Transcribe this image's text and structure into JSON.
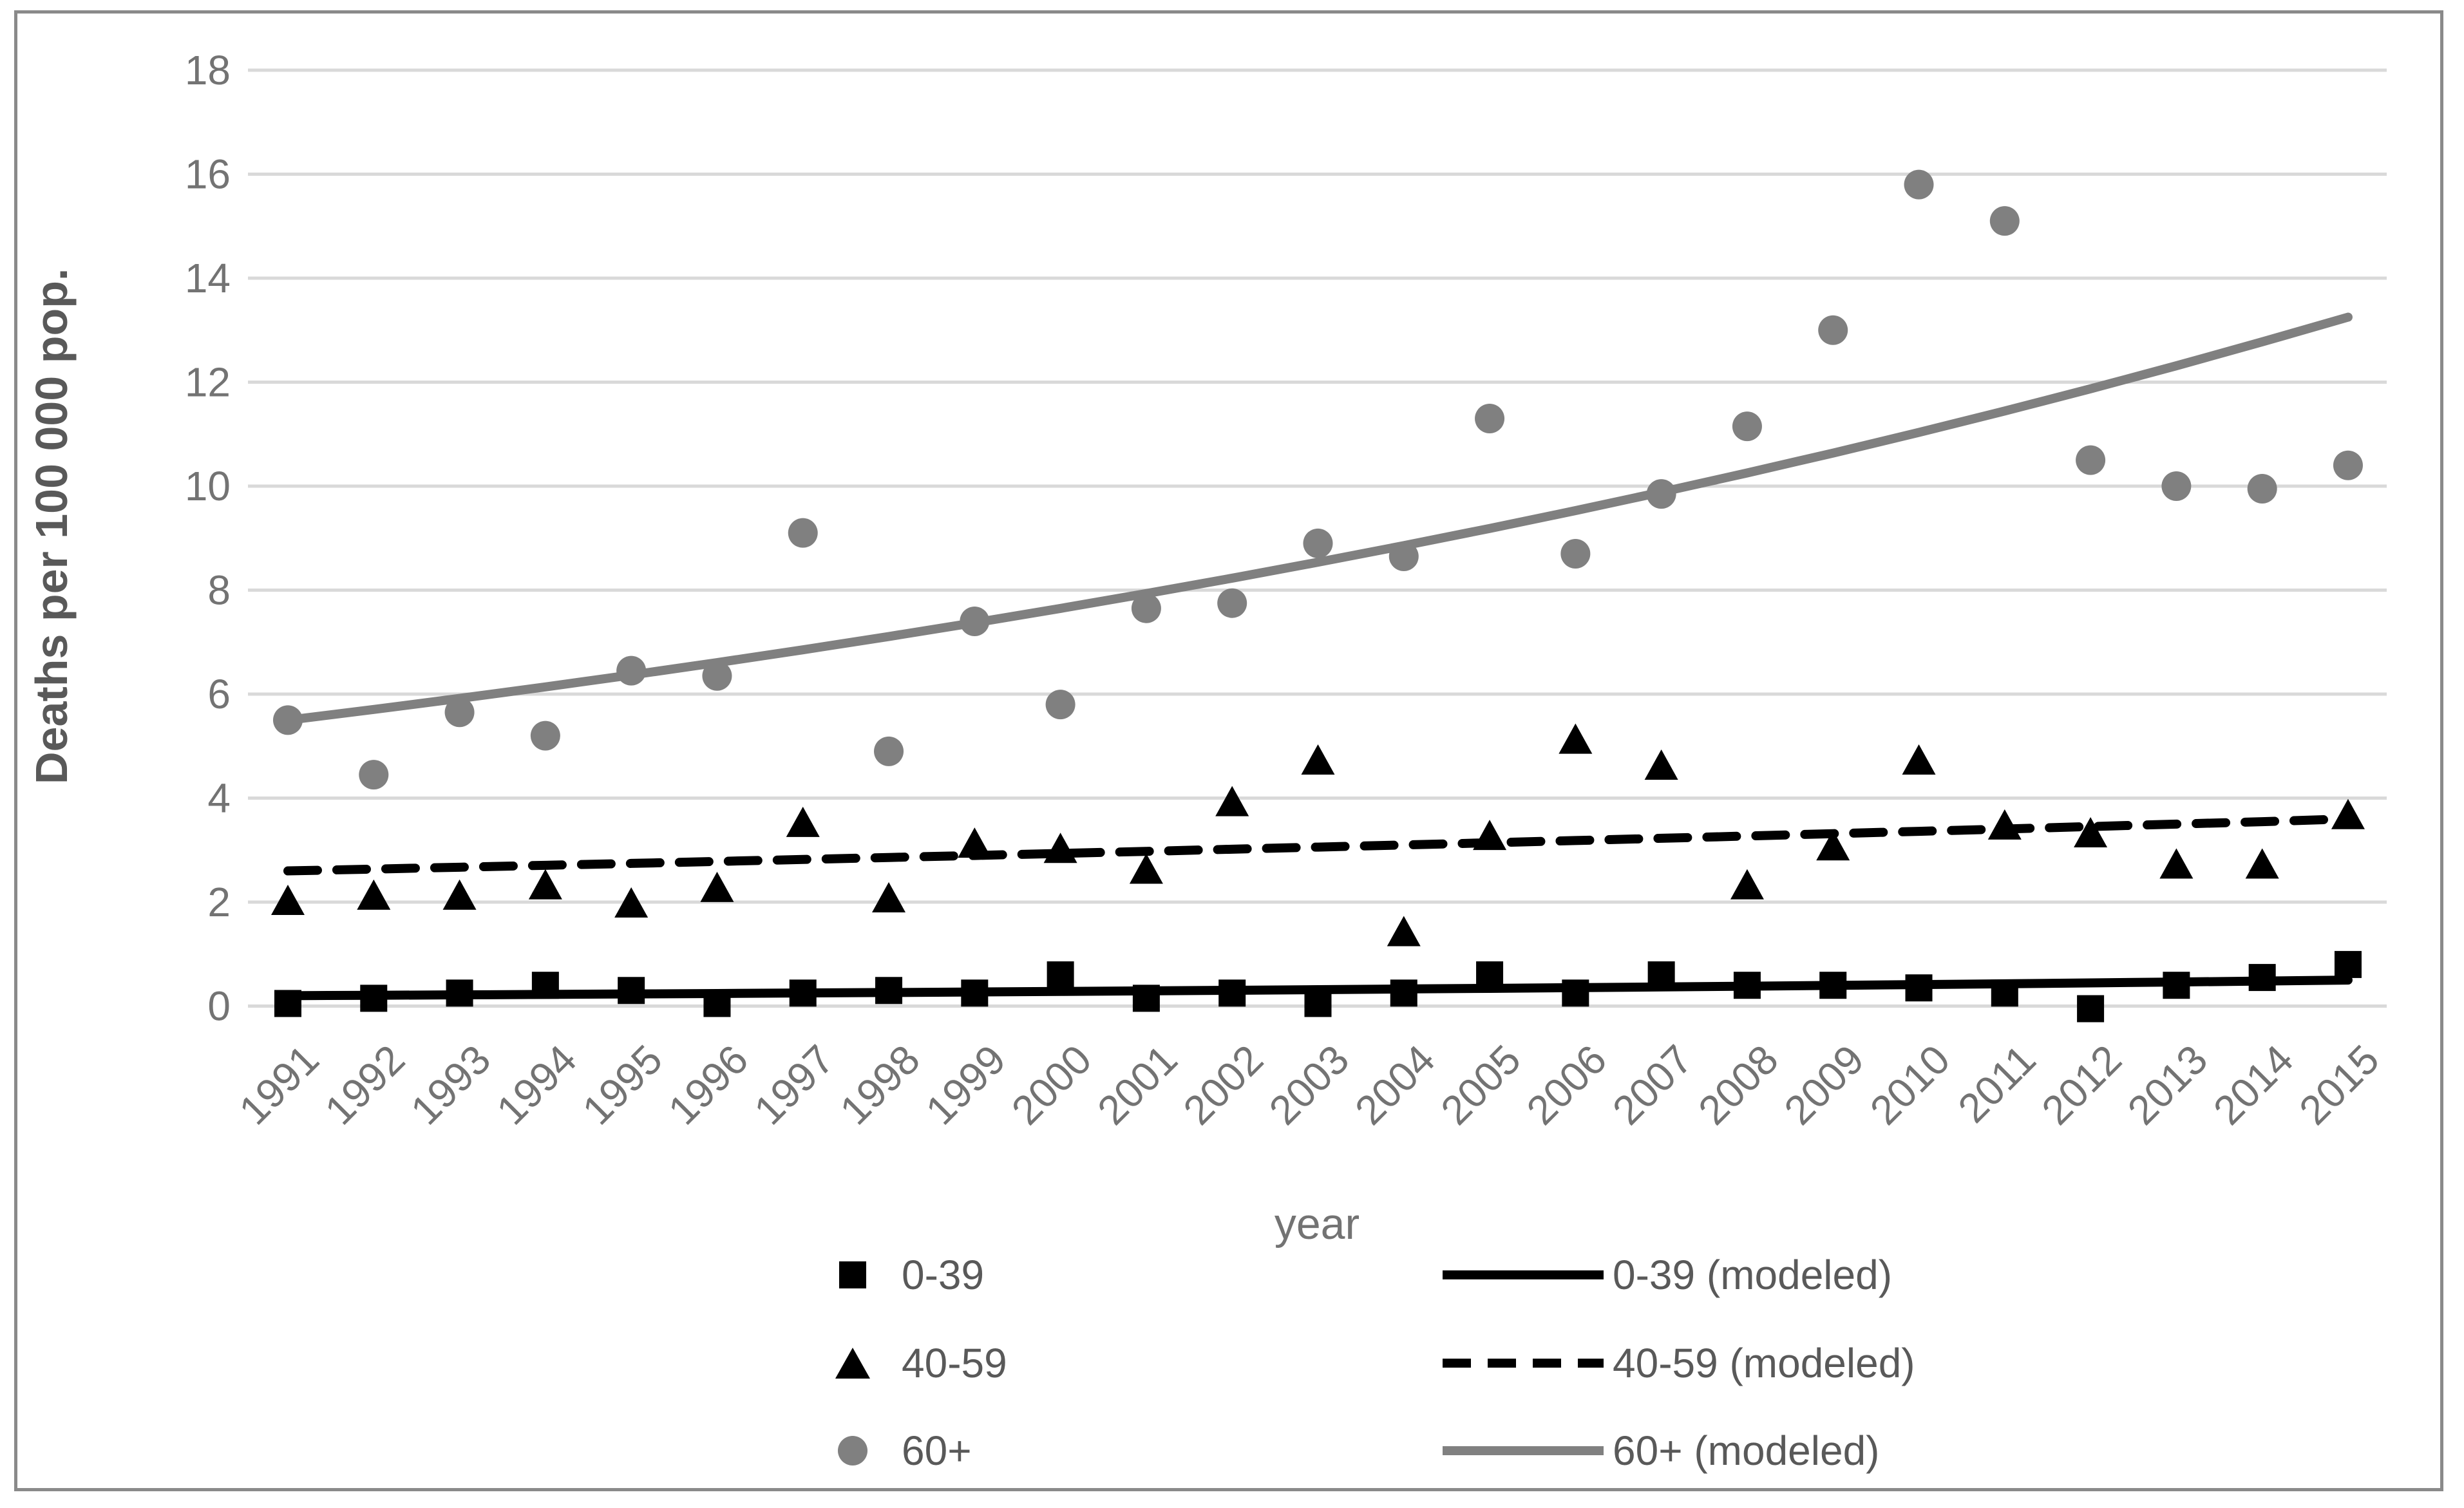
{
  "styles": {
    "grid_color": "#d9d9d9",
    "tick_color": "#737373",
    "axis_title_color": "#595959",
    "legend_text_color": "#595959",
    "black_series_color": "#000000",
    "gray_series_color": "#808080",
    "frame_color": "#8a8a8a"
  },
  "chart_data": {
    "type": "scatter",
    "title": "",
    "xlabel": "year",
    "ylabel": "Deaths per 100 000 pop.",
    "x_categories": [
      1991,
      1992,
      1993,
      1994,
      1995,
      1996,
      1997,
      1998,
      1999,
      2000,
      2001,
      2002,
      2003,
      2004,
      2005,
      2006,
      2007,
      2008,
      2009,
      2010,
      2011,
      2012,
      2013,
      2014,
      2015
    ],
    "ylim": [
      0,
      18
    ],
    "ytick_step": 2,
    "grid": "horizontal",
    "legend_position": "bottom",
    "series": [
      {
        "name": "0-39",
        "kind": "scatter",
        "marker": "square",
        "color": "#000000",
        "values": [
          0.05,
          0.15,
          0.25,
          0.4,
          0.3,
          0.05,
          0.25,
          0.3,
          0.25,
          0.6,
          0.15,
          0.25,
          0.05,
          0.25,
          0.6,
          0.25,
          0.6,
          0.4,
          0.4,
          0.35,
          0.25,
          -0.05,
          0.4,
          0.55,
          0.8
        ]
      },
      {
        "name": "40-59",
        "kind": "scatter",
        "marker": "triangle",
        "color": "#000000",
        "values": [
          2.0,
          2.1,
          2.1,
          2.3,
          1.95,
          2.25,
          3.5,
          2.05,
          3.1,
          3.0,
          2.6,
          3.9,
          4.7,
          1.4,
          3.25,
          5.1,
          4.6,
          2.3,
          3.05,
          4.7,
          3.45,
          3.3,
          2.7,
          2.7,
          3.65
        ]
      },
      {
        "name": "60+",
        "kind": "scatter",
        "marker": "circle",
        "color": "#808080",
        "values": [
          5.5,
          4.45,
          5.65,
          5.2,
          6.45,
          6.35,
          9.1,
          4.9,
          7.4,
          5.8,
          7.65,
          7.75,
          8.9,
          8.65,
          11.3,
          8.7,
          9.85,
          11.15,
          13.0,
          15.8,
          15.1,
          10.5,
          10.0,
          9.95,
          10.4
        ]
      },
      {
        "name": "0-39 (modeled)",
        "kind": "line",
        "dash": "solid",
        "color": "#000000",
        "values": [
          0.2,
          0.208,
          0.216,
          0.224,
          0.233,
          0.242,
          0.252,
          0.261,
          0.271,
          0.282,
          0.293,
          0.304,
          0.316,
          0.329,
          0.341,
          0.355,
          0.368,
          0.383,
          0.398,
          0.413,
          0.429,
          0.446,
          0.463,
          0.481,
          0.5
        ]
      },
      {
        "name": "40-59 (modeled)",
        "kind": "line",
        "dash": "dashed",
        "color": "#000000",
        "values": [
          2.6,
          2.635,
          2.671,
          2.708,
          2.744,
          2.782,
          2.82,
          2.858,
          2.897,
          2.936,
          2.976,
          3.017,
          3.058,
          3.099,
          3.141,
          3.184,
          3.227,
          3.271,
          3.316,
          3.361,
          3.406,
          3.453,
          3.5,
          3.547,
          3.6
        ]
      },
      {
        "name": "60+ (modeled)",
        "kind": "line",
        "dash": "solid",
        "color": "#808080",
        "values": [
          5.5,
          5.705,
          5.918,
          6.139,
          6.368,
          6.606,
          6.852,
          7.108,
          7.373,
          7.648,
          7.934,
          8.23,
          8.537,
          8.856,
          9.186,
          9.529,
          9.885,
          10.254,
          10.636,
          11.033,
          11.445,
          11.872,
          12.315,
          12.775,
          13.25
        ]
      }
    ]
  },
  "legend": {
    "left_column": [
      {
        "label": "0-39",
        "marker": "square"
      },
      {
        "label": "40-59",
        "marker": "triangle"
      },
      {
        "label": "60+",
        "marker": "circle"
      }
    ],
    "right_column": [
      {
        "label": "0-39 (modeled)",
        "line": "solid-black"
      },
      {
        "label": "40-59 (modeled)",
        "line": "dashed-black"
      },
      {
        "label": "60+ (modeled)",
        "line": "solid-gray"
      }
    ]
  }
}
